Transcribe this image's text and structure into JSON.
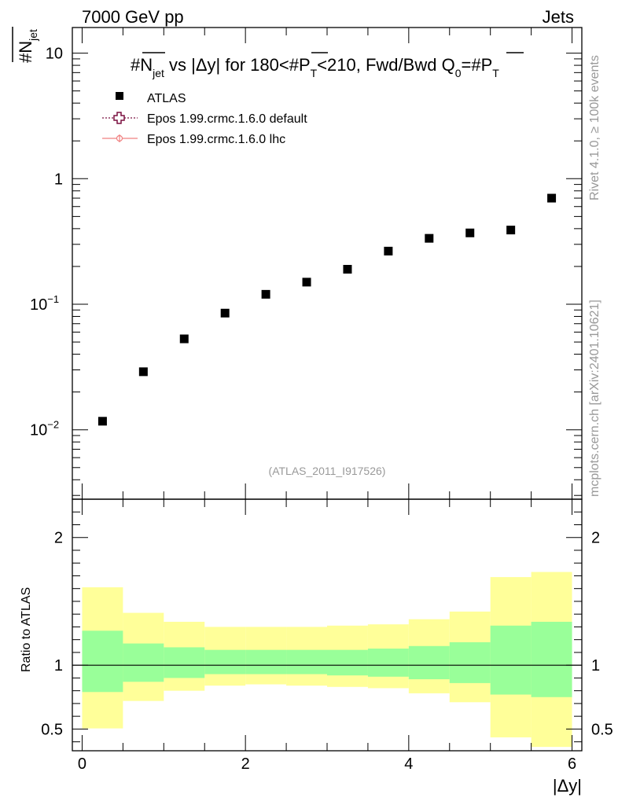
{
  "header": {
    "energy_label": "7000 GeV pp",
    "process_label": "Jets"
  },
  "side_labels": {
    "rivet": "Rivet 4.1.0, ≥ 100k events",
    "mcplots": "mcplots.cern.ch [arXiv:2401.10621]"
  },
  "chart_data": [
    {
      "type": "scatter",
      "title": "#N_jet vs |Δy| for 180<#P_T<210, Fwd/Bwd Q_0=#P_T",
      "title_parts": {
        "p1": "#N",
        "p1sub": "jet",
        "p2": " vs |Δy| for 180<#P",
        "p2sub": "T",
        "p3": "<210, Fwd/Bwd Q",
        "p3sub": "0",
        "p4": "=#P",
        "p4sub": "T"
      },
      "ylabel": "#N_jet",
      "ylabel_parts": {
        "main": "#N",
        "sub": "jet"
      },
      "yscale": "log",
      "ylim": [
        0.0028,
        16
      ],
      "xlim": [
        -0.12,
        6.12
      ],
      "y_ticks": [
        {
          "value": 0.01,
          "base": "10",
          "exp": "−2"
        },
        {
          "value": 0.1,
          "base": "10",
          "exp": "−1"
        },
        {
          "value": 1,
          "base": "1",
          "exp": ""
        },
        {
          "value": 10,
          "base": "10",
          "exp": ""
        }
      ],
      "legend": {
        "position": "top-left",
        "entries": [
          "ATLAS",
          "Epos 1.99.crmc.1.6.0 default",
          "Epos 1.99.crmc.1.6.0 lhc"
        ]
      },
      "watermark": "(ATLAS_2011_I917526)",
      "series": [
        {
          "name": "ATLAS",
          "x": [
            0.25,
            0.75,
            1.25,
            1.75,
            2.25,
            2.75,
            3.25,
            3.75,
            4.25,
            4.75,
            5.25,
            5.75
          ],
          "y": [
            0.0117,
            0.029,
            0.053,
            0.085,
            0.12,
            0.15,
            0.19,
            0.265,
            0.335,
            0.37,
            0.39,
            0.7
          ]
        }
      ]
    },
    {
      "type": "area",
      "ylabel": "Ratio to ATLAS",
      "xlabel": "|Δy|",
      "xlim": [
        -0.12,
        6.12
      ],
      "ylim": [
        0.33,
        2.3
      ],
      "x_ticks": [
        "0",
        "2",
        "4",
        "6"
      ],
      "x_tick_values": [
        0,
        2,
        4,
        6
      ],
      "y_ticks": [
        "0.5",
        "1",
        "2"
      ],
      "y_tick_values": [
        0.5,
        1,
        2
      ],
      "reference_line": 1,
      "bins": [
        0,
        0.5,
        1,
        1.5,
        2,
        2.5,
        3,
        3.5,
        4,
        4.5,
        5,
        5.5,
        6
      ],
      "band_stat": {
        "name": "stat uncertainty",
        "lower": [
          0.79,
          0.87,
          0.9,
          0.93,
          0.93,
          0.93,
          0.92,
          0.91,
          0.89,
          0.86,
          0.77,
          0.75
        ],
        "upper": [
          1.27,
          1.17,
          1.14,
          1.12,
          1.12,
          1.12,
          1.12,
          1.13,
          1.15,
          1.18,
          1.31,
          1.34
        ]
      },
      "band_total": {
        "name": "total uncertainty",
        "lower": [
          0.505,
          0.72,
          0.8,
          0.84,
          0.85,
          0.84,
          0.83,
          0.82,
          0.78,
          0.71,
          0.435,
          0.36
        ],
        "upper": [
          1.61,
          1.41,
          1.34,
          1.3,
          1.3,
          1.3,
          1.31,
          1.32,
          1.36,
          1.42,
          1.69,
          1.73
        ]
      },
      "colors": {
        "stat": "#99ff99",
        "total": "#ffff99"
      }
    }
  ]
}
